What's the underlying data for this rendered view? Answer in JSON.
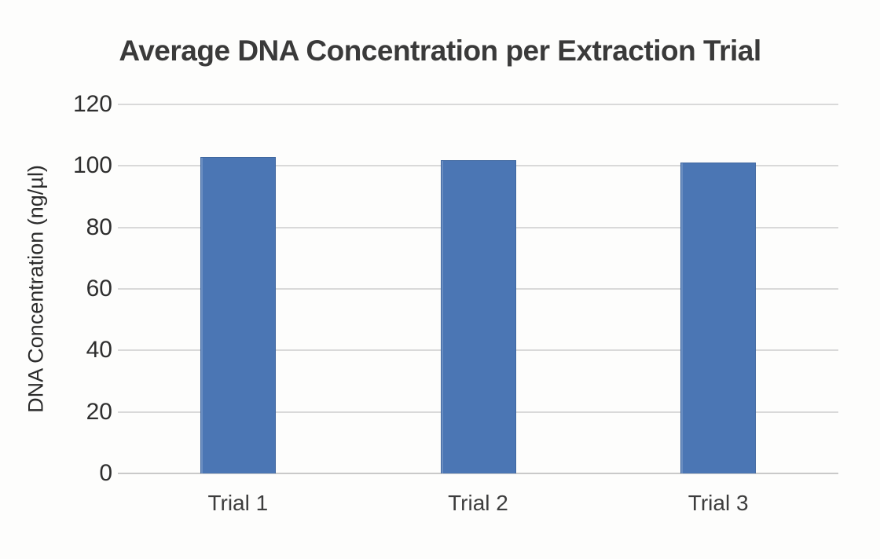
{
  "chart_data": {
    "type": "bar",
    "title": "Average DNA Concentration per Extraction Trial",
    "categories": [
      "Trial 1",
      "Trial 2",
      "Trial 3"
    ],
    "values": [
      103,
      102,
      101
    ],
    "xlabel": "",
    "ylabel": "DNA Concentration (ng/µl)",
    "ylim": [
      0,
      120
    ],
    "yticks": [
      0,
      20,
      40,
      60,
      80,
      100,
      120
    ],
    "grid": true,
    "legend_position": "none",
    "bar_color": "#4b76b4",
    "bar_border_color": "#40679f",
    "gridline_color": "#d9d9d9",
    "title_color": "#3a3a3a",
    "axis_text_color": "#2e2e2e",
    "background_color": "#fdfdfc"
  }
}
